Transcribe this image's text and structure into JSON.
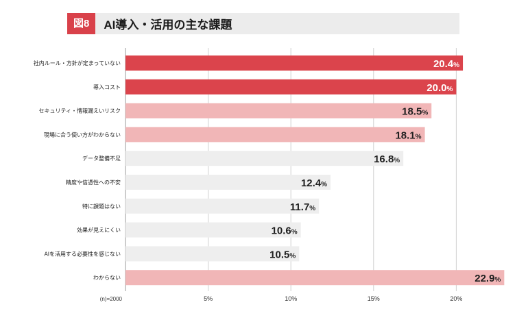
{
  "figure": {
    "badge": "図8",
    "title": "AI導入・活用の主な課題"
  },
  "colors": {
    "dark_red": "#db444c",
    "light_red": "#f1b6b7",
    "gray": "#eeeeee",
    "badge": "#d9414a"
  },
  "chart_data": {
    "type": "bar",
    "orientation": "horizontal",
    "categories": [
      "社内ルール・方針が定まっていない",
      "導入コスト",
      "セキュリティ・情報漏えいリスク",
      "現場に合う使い方がわからない",
      "データ整備不足",
      "精度や信憑性への不安",
      "特に課題はない",
      "効果が見えにくい",
      "AIを活用する必要性を感じない",
      "わからない"
    ],
    "values": [
      20.4,
      20.0,
      18.5,
      18.1,
      16.8,
      12.4,
      11.7,
      10.6,
      10.5,
      22.9
    ],
    "value_labels": [
      "20.4%",
      "20.0%",
      "18.5%",
      "18.1%",
      "16.8%",
      "12.4%",
      "11.7%",
      "10.6%",
      "10.5%",
      "22.9%"
    ],
    "bar_colors": [
      "dark_red",
      "dark_red",
      "light_red",
      "light_red",
      "gray",
      "gray",
      "gray",
      "gray",
      "gray",
      "light_red"
    ],
    "x_ticks": [
      "5%",
      "10%",
      "15%",
      "20%"
    ],
    "x_tick_values": [
      5,
      10,
      15,
      20
    ],
    "xlim": [
      0,
      23
    ],
    "sample_note": "(n)=2000",
    "grid": true,
    "title": "AI導入・活用の主な課題"
  }
}
